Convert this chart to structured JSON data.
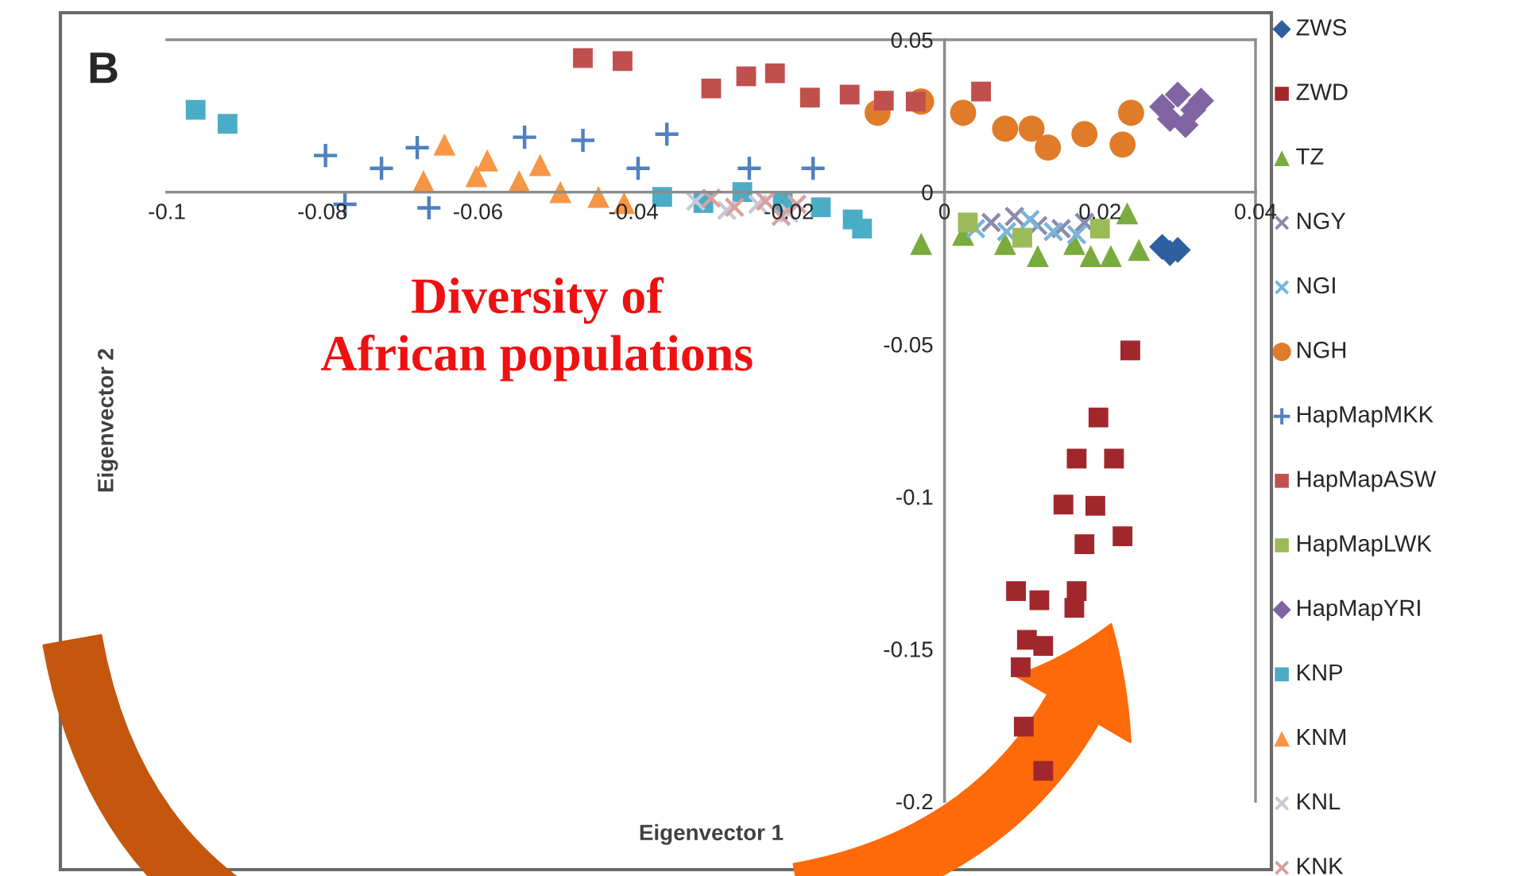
{
  "chart_data": {
    "type": "scatter",
    "xlabel": "Eigenvector 1",
    "ylabel": "Eigenvector 2",
    "annotations": [
      "B",
      "Diversity of\nAfrican populations"
    ],
    "xlim": [
      -0.1,
      0.04
    ],
    "ylim": [
      -0.2,
      0.05
    ],
    "xticks": [
      -0.1,
      -0.08,
      -0.06,
      -0.04,
      -0.02,
      0,
      0.02,
      0.04
    ],
    "yticks": [
      0.05,
      0,
      -0.05,
      -0.1,
      -0.15,
      -0.2
    ],
    "grid": false,
    "legend": "right",
    "series": [
      {
        "name": "ZWS",
        "color": "#2e5f9e",
        "marker": "diamond",
        "x": [
          0.028,
          0.029,
          0.03
        ],
        "values": [
          -0.018,
          -0.02,
          -0.019
        ]
      },
      {
        "name": "ZWD",
        "color": "#a0282d",
        "marker": "square",
        "x": [
          0.0239,
          0.0198,
          0.017,
          0.0218,
          0.0153,
          0.0194,
          0.018,
          0.0229,
          0.0092,
          0.0122,
          0.017,
          0.0167,
          0.0106,
          0.0098,
          0.0127,
          0.0102,
          0.0127
        ],
        "values": [
          -0.052,
          -0.074,
          -0.0875,
          -0.0875,
          -0.1026,
          -0.103,
          -0.1156,
          -0.113,
          -0.131,
          -0.134,
          -0.131,
          -0.1365,
          -0.147,
          -0.156,
          -0.149,
          -0.1755,
          -0.19
        ]
      },
      {
        "name": "TZ",
        "color": "#7aab3e",
        "marker": "triangle",
        "x": [
          -0.003,
          0.0024,
          0.0078,
          0.012,
          0.0167,
          0.0188,
          0.0214,
          0.0235,
          0.025
        ],
        "values": [
          -0.017,
          -0.014,
          -0.017,
          -0.021,
          -0.017,
          -0.021,
          -0.021,
          -0.007,
          -0.019
        ]
      },
      {
        "name": "NGY",
        "color": "#8a8ab0",
        "marker": "cross",
        "x": [
          0.006,
          0.009,
          0.012,
          0.015,
          0.018
        ],
        "values": [
          -0.01,
          -0.008,
          -0.011,
          -0.012,
          -0.01
        ]
      },
      {
        "name": "NGI",
        "color": "#79b4d9",
        "marker": "cross",
        "x": [
          0.004,
          0.008,
          0.011,
          0.014,
          0.017
        ],
        "values": [
          -0.012,
          -0.013,
          -0.009,
          -0.013,
          -0.014
        ]
      },
      {
        "name": "NGH",
        "color": "#e07b2a",
        "marker": "circle",
        "x": [
          -0.0086,
          -0.003,
          0.0024,
          0.0078,
          0.0112,
          0.0133,
          0.018,
          0.0229,
          0.024
        ],
        "values": [
          0.026,
          0.0297,
          0.026,
          0.0208,
          0.0208,
          0.0146,
          0.019,
          0.0156,
          0.026
        ]
      },
      {
        "name": "HapMapMKK",
        "color": "#4f81bd",
        "marker": "plus",
        "x": [
          -0.0796,
          -0.0771,
          -0.0724,
          -0.0678,
          -0.0663,
          -0.054,
          -0.0465,
          -0.0394,
          -0.0357,
          -0.0251,
          -0.0169
        ],
        "values": [
          0.012,
          -0.004,
          0.0078,
          0.0146,
          -0.0052,
          0.018,
          0.017,
          0.0078,
          0.019,
          0.0078,
          0.0078
        ]
      },
      {
        "name": "HapMapASW",
        "color": "#c0504d",
        "marker": "square",
        "x": [
          -0.0465,
          -0.0414,
          -0.03,
          -0.0255,
          -0.0218,
          -0.0173,
          -0.0122,
          -0.0078,
          -0.0037,
          0.0047
        ],
        "values": [
          0.044,
          0.043,
          0.034,
          0.038,
          0.039,
          0.031,
          0.032,
          0.03,
          0.0297,
          0.033
        ]
      },
      {
        "name": "HapMapLWK",
        "color": "#9bbb59",
        "marker": "square",
        "x": [
          0.003,
          0.01,
          0.02
        ],
        "values": [
          -0.01,
          -0.015,
          -0.012
        ]
      },
      {
        "name": "HapMapYRI",
        "color": "#8064a2",
        "marker": "diamond",
        "x": [
          0.028,
          0.03,
          0.032,
          0.031,
          0.033,
          0.029
        ],
        "values": [
          0.028,
          0.032,
          0.027,
          0.022,
          0.03,
          0.024
        ]
      },
      {
        "name": "KNP",
        "color": "#4bacc6",
        "marker": "square",
        "x": [
          -0.0963,
          -0.0922,
          -0.0363,
          -0.031,
          -0.026,
          -0.0208,
          -0.0159,
          -0.0118,
          -0.0106
        ],
        "values": [
          0.027,
          0.0224,
          -0.0016,
          -0.0036,
          0,
          -0.0036,
          -0.005,
          -0.009,
          -0.012
        ]
      },
      {
        "name": "KNM",
        "color": "#f79646",
        "marker": "triangle",
        "x": [
          -0.0643,
          -0.067,
          -0.0602,
          -0.0588,
          -0.0547,
          -0.052,
          -0.0494,
          -0.0445,
          -0.0412
        ],
        "values": [
          0.0156,
          0.0036,
          0.0052,
          0.0104,
          0.0036,
          0.0089,
          0,
          -0.0016,
          -0.0036
        ]
      },
      {
        "name": "KNL",
        "color": "#c8c8d8",
        "marker": "cross",
        "x": [
          -0.032,
          -0.028,
          -0.024,
          -0.02
        ],
        "values": [
          -0.003,
          -0.006,
          -0.004,
          -0.007
        ]
      },
      {
        "name": "KNK",
        "color": "#d9a0a0",
        "marker": "cross",
        "x": [
          -0.03,
          -0.027,
          -0.023,
          -0.021,
          -0.019
        ],
        "values": [
          -0.002,
          -0.005,
          -0.003,
          -0.008,
          -0.004
        ]
      }
    ]
  }
}
